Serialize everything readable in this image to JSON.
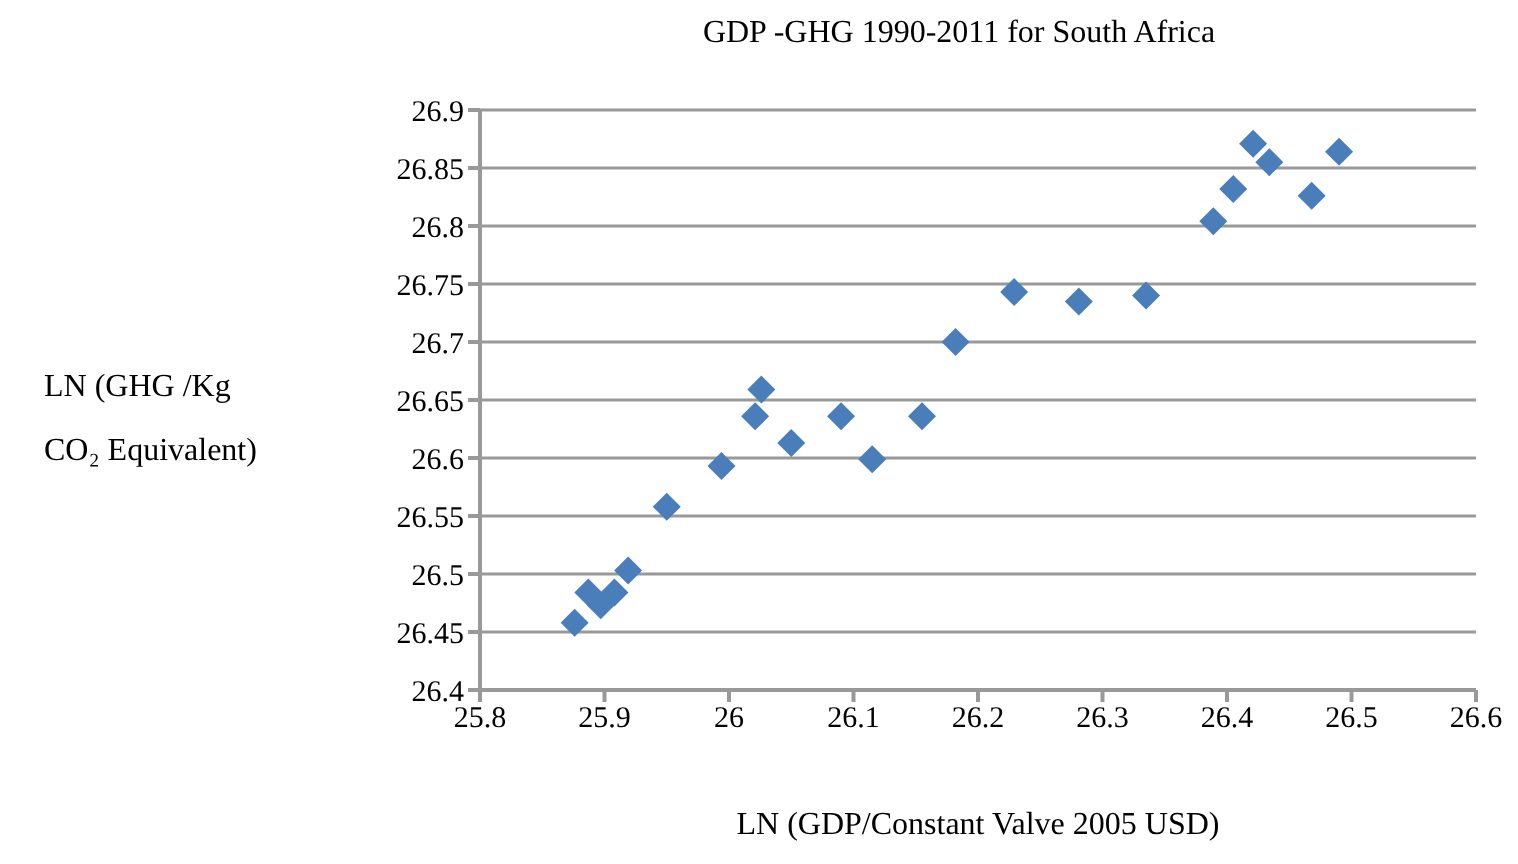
{
  "chart_data": {
    "type": "scatter",
    "title": "GDP -GHG 1990-2011 for South Africa",
    "xlabel": "LN (GDP/Constant Valve 2005 USD)",
    "ylabel": "LN (GHG /Kg CO₂ Equivalent)",
    "x": [
      25.876,
      25.887,
      25.897,
      25.908,
      25.919,
      25.95,
      25.994,
      26.021,
      26.026,
      26.05,
      26.09,
      26.115,
      26.155,
      26.182,
      26.229,
      26.281,
      26.335,
      26.389,
      26.405,
      26.421,
      26.434,
      26.468,
      26.49
    ],
    "series": [
      {
        "color": "#4a7ebb",
        "values": [
          26.458,
          26.484,
          26.473,
          26.484,
          26.503,
          26.558,
          26.593,
          26.636,
          26.659,
          26.613,
          26.636,
          26.599,
          26.636,
          26.7,
          26.743,
          26.735,
          26.74,
          26.804,
          26.832,
          26.871,
          26.855,
          26.826,
          26.864
        ]
      }
    ],
    "xlim": [
      25.8,
      26.6
    ],
    "xticks": [
      25.8,
      25.9,
      26,
      26.1,
      26.2,
      26.3,
      26.4,
      26.5,
      26.6
    ],
    "ylim": [
      26.4,
      26.9
    ],
    "yticks": [
      26.4,
      26.45,
      26.5,
      26.55,
      26.6,
      26.65,
      26.7,
      26.75,
      26.8,
      26.85,
      26.9
    ],
    "grid": "y",
    "marker": "diamond",
    "legend": false
  }
}
